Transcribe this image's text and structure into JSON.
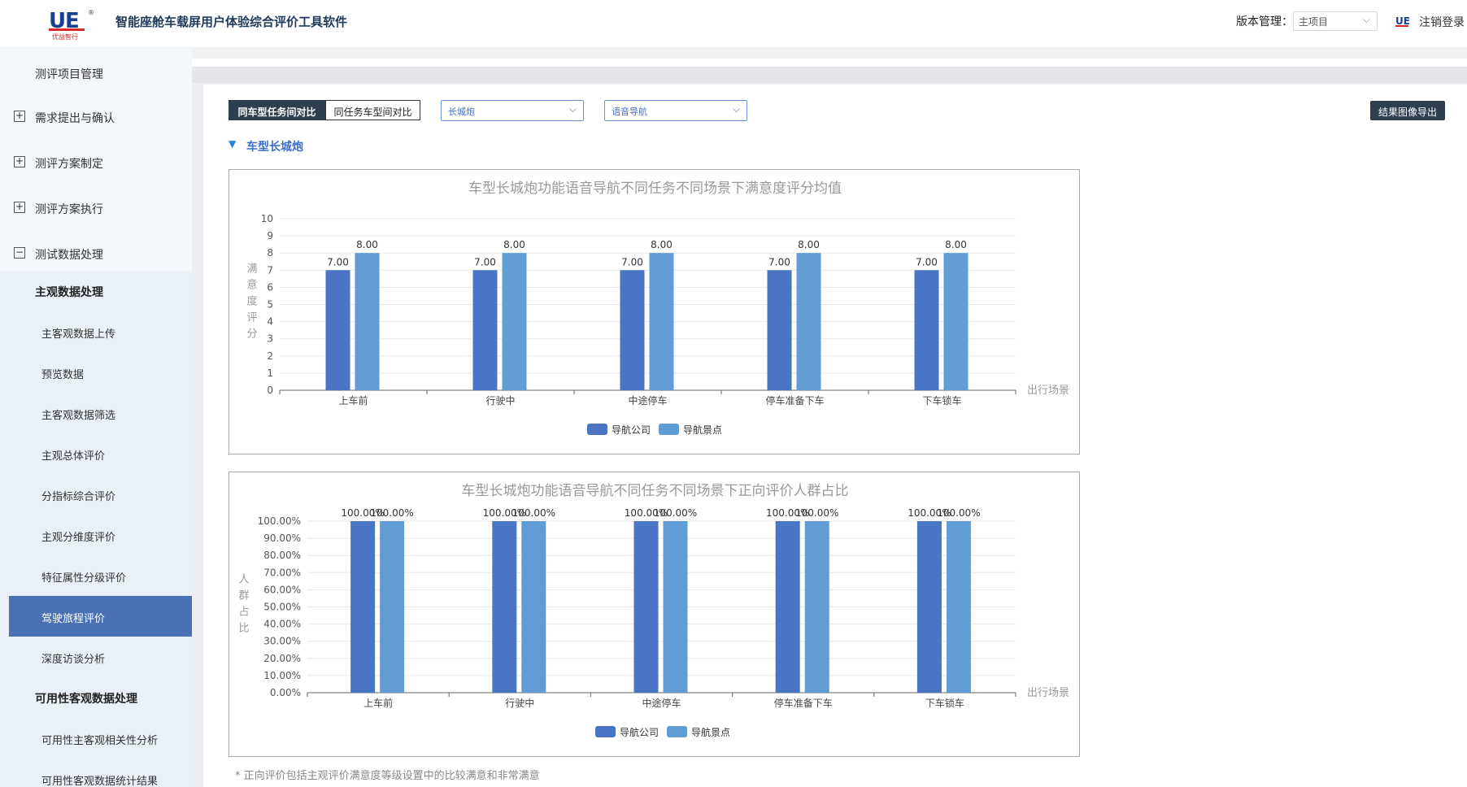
{
  "header": {
    "logo_text": "UE",
    "logo_sub": "优益智行",
    "app_title": "智能座舱车载屏用户体验综合评价工具软件",
    "version_label": "版本管理：",
    "version_value": "主项目",
    "logout": "注销登录"
  },
  "sidebar": {
    "items": [
      {
        "label": "测评项目管理",
        "expand": ""
      },
      {
        "label": "需求提出与确认",
        "expand": "+"
      },
      {
        "label": "测评方案制定",
        "expand": "+"
      },
      {
        "label": "测评方案执行",
        "expand": "+"
      },
      {
        "label": "测试数据处理",
        "expand": "−"
      }
    ],
    "sub_head_1": "主观数据处理",
    "sub_items": [
      "主客观数据上传",
      "预览数据",
      "主客观数据筛选",
      "主观总体评价",
      "分指标综合评价",
      "主观分维度评价",
      "特征属性分级评价",
      "驾驶旅程评价",
      "深度访谈分析"
    ],
    "active_sub": "驾驶旅程评价",
    "sub_head_2": "可用性客观数据处理",
    "sub_items_2": [
      "可用性主客观相关性分析",
      "可用性客观数据统计结果"
    ]
  },
  "toolbar": {
    "tab_active": "同车型任务间对比",
    "tab_inactive": "同任务车型间对比",
    "select_car": "长城炮",
    "select_function": "语音导航",
    "export_label": "结果图像导出"
  },
  "section": {
    "title": "车型长城炮"
  },
  "chart_data": [
    {
      "type": "bar",
      "title": "车型长城炮功能语音导航不同任务不同场景下满意度评分均值",
      "xlabel": "出行场景",
      "ylabel": "满意度评分",
      "ylim": [
        0,
        10
      ],
      "yticks": [
        "0",
        "1",
        "2",
        "3",
        "4",
        "5",
        "6",
        "7",
        "8",
        "9",
        "10"
      ],
      "categories": [
        "上车前",
        "行驶中",
        "中途停车",
        "停车准备下车",
        "下车锁车"
      ],
      "series": [
        {
          "name": "导航公司",
          "values": [
            7.0,
            7.0,
            7.0,
            7.0,
            7.0
          ],
          "labels": [
            "7.00",
            "7.00",
            "7.00",
            "7.00",
            "7.00"
          ]
        },
        {
          "name": "导航景点",
          "values": [
            8.0,
            8.0,
            8.0,
            8.0,
            8.0
          ],
          "labels": [
            "8.00",
            "8.00",
            "8.00",
            "8.00",
            "8.00"
          ]
        }
      ],
      "legend": "bottom-center",
      "colors": [
        "#4a75c4",
        "#5f9dd4"
      ],
      "grid": true
    },
    {
      "type": "bar",
      "title": "车型长城炮功能语音导航不同任务不同场景下正向评价人群占比",
      "xlabel": "出行场景",
      "ylabel": "人群占比",
      "ylim": [
        0,
        100
      ],
      "yticks": [
        "0.00%",
        "10.00%",
        "20.00%",
        "30.00%",
        "40.00%",
        "50.00%",
        "60.00%",
        "70.00%",
        "80.00%",
        "90.00%",
        "100.00%"
      ],
      "categories": [
        "上车前",
        "行驶中",
        "中途停车",
        "停车准备下车",
        "下车锁车"
      ],
      "series": [
        {
          "name": "导航公司",
          "values": [
            100,
            100,
            100,
            100,
            100
          ],
          "labels": [
            "100.00%",
            "100.00%",
            "100.00%",
            "100.00%",
            "100.00%"
          ]
        },
        {
          "name": "导航景点",
          "values": [
            100,
            100,
            100,
            100,
            100
          ],
          "labels": [
            "100.00%",
            "100.00%",
            "100.00%",
            "100.00%",
            "100.00%"
          ]
        }
      ],
      "legend": "bottom-center",
      "colors": [
        "#4a75c4",
        "#5f9dd4"
      ],
      "grid": true
    }
  ],
  "footnote": "* 正向评价包括主观评价满意度等级设置中的比较满意和非常满意"
}
